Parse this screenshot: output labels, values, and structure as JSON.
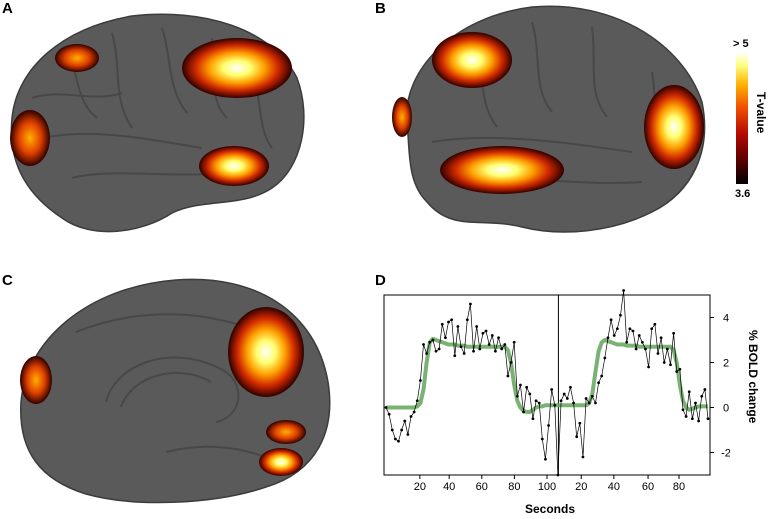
{
  "panels": {
    "a": "A",
    "b": "B",
    "c": "C",
    "d": "D"
  },
  "colorbar": {
    "max_label": "> 5",
    "min_label": "3.6",
    "title": "T-value",
    "colors": [
      "#000000",
      "#5a0000",
      "#b40a00",
      "#f05000",
      "#ffb000",
      "#ffff80",
      "#ffffff"
    ]
  },
  "chart_data": {
    "type": "line",
    "xlabel": "Seconds",
    "ylabel": "% BOLD change",
    "x_ticks": [
      "20",
      "40",
      "60",
      "80",
      "100",
      "20",
      "40",
      "60",
      "80"
    ],
    "y_ticks": [
      "4",
      "2",
      "0",
      "-2"
    ],
    "ylim": [
      -3,
      5
    ],
    "series": [
      {
        "kind": "raw",
        "values": [
          0,
          -0.3,
          -1.0,
          -1.4,
          -1.5,
          -1.0,
          -0.6,
          -1.2,
          -0.4,
          -0.2,
          0.3,
          1.2,
          2.8,
          2.4,
          2.9,
          3.0,
          2.5,
          2.6,
          3.7,
          3.1,
          3.8,
          3.9,
          2.3,
          3.6,
          2.7,
          2.4,
          3.9,
          4.6,
          2.5,
          3.6,
          2.6,
          3.3,
          3.4,
          2.8,
          3.2,
          2.5,
          3.1,
          2.6,
          2.8,
          1.4,
          2.0,
          2.9,
          0.5,
          1.0,
          -0.2,
          0.9,
          0.6,
          -0.5,
          0.3,
          0.2,
          -1.4,
          -2.3,
          -0.8,
          0.8,
          0.1,
          -3.0,
          0.3,
          0.6,
          0.4,
          0.9,
          0.2,
          -1.3,
          -0.7,
          -2.2,
          0.4,
          0.2,
          0.5,
          0.2,
          1.1,
          1.4,
          2.2,
          3.1,
          3.9,
          3.2,
          3.5,
          4.1,
          5.2,
          2.9,
          3.5,
          3.4,
          2.6,
          3.2,
          2.9,
          2.6,
          1.8,
          3.5,
          3.7,
          2.4,
          3.1,
          2.0,
          2.6,
          1.9,
          3.3,
          1.6,
          1.7,
          -0.1,
          -0.4,
          0.7,
          -0.5,
          0.2,
          -0.6,
          0.5,
          0.8,
          -0.5
        ],
        "color": "#000000"
      },
      {
        "kind": "model",
        "values": [
          0,
          0,
          0,
          0,
          0,
          0,
          0,
          0,
          0,
          0,
          0.05,
          0.2,
          0.8,
          2.0,
          2.9,
          3.05,
          3.0,
          2.95,
          2.9,
          2.85,
          2.8,
          2.8,
          2.8,
          2.75,
          2.75,
          2.75,
          2.7,
          2.7,
          2.7,
          2.7,
          2.7,
          2.7,
          2.7,
          2.7,
          2.7,
          2.7,
          2.7,
          2.7,
          2.7,
          2.55,
          2.0,
          1.0,
          0.3,
          0.0,
          -0.15,
          -0.2,
          -0.2,
          -0.1,
          0.0,
          0.05,
          0.05,
          0.1,
          0.1,
          0.1,
          0.1,
          0.1,
          0.1,
          0.1,
          0.1,
          0.1,
          0.1,
          0.1,
          0.1,
          0.1,
          0.1,
          0.2,
          0.6,
          1.6,
          2.5,
          2.9,
          3.0,
          2.95,
          2.9,
          2.85,
          2.8,
          2.8,
          2.8,
          2.75,
          2.75,
          2.75,
          2.75,
          2.7,
          2.7,
          2.7,
          2.7,
          2.7,
          2.7,
          2.7,
          2.7,
          2.7,
          2.7,
          2.7,
          2.55,
          2.0,
          1.0,
          0.3,
          0.0,
          -0.1,
          -0.05,
          0.0,
          0.05,
          0.05,
          0.05,
          0.05
        ],
        "color": "#6aaa64"
      }
    ]
  }
}
